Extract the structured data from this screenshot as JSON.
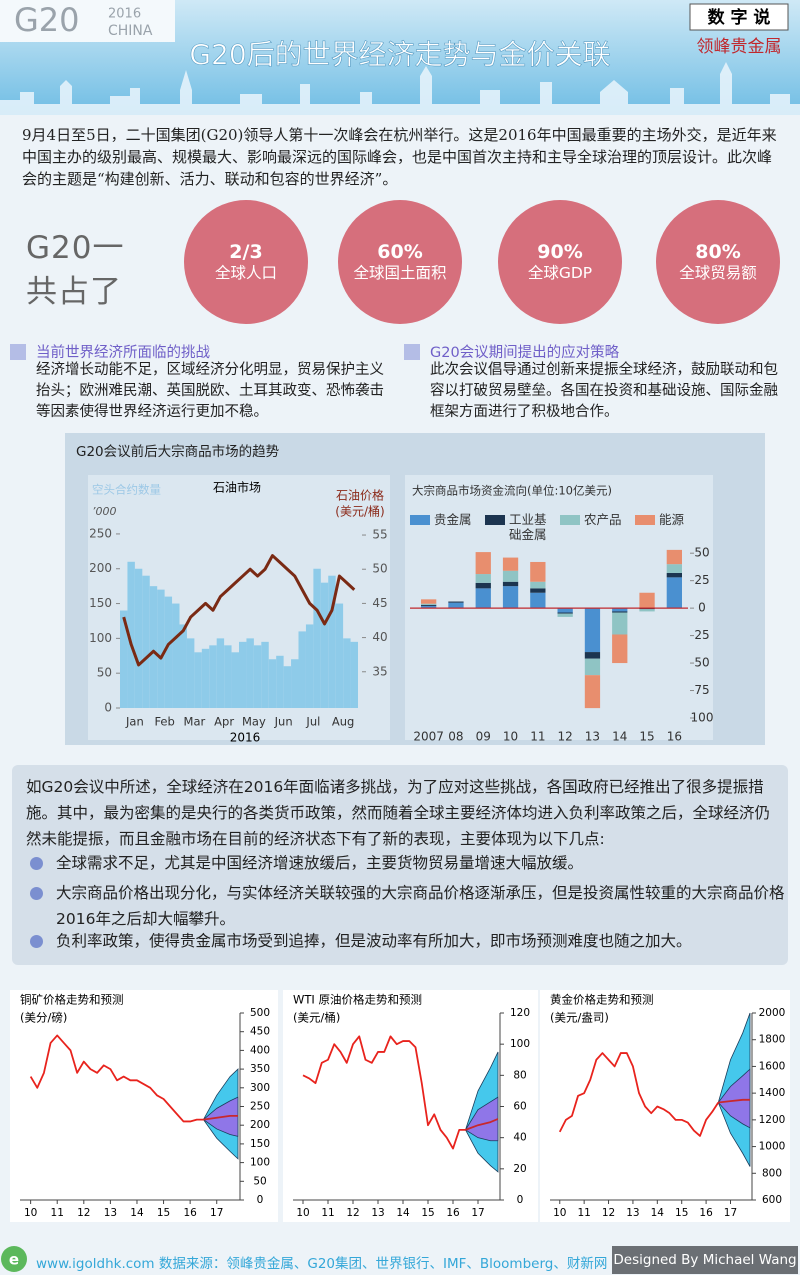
{
  "header": {
    "logo_text": "G20",
    "logo_year": "2016",
    "logo_country": "CHINA",
    "title": "G20后的世界经济走势与金价关联",
    "badge_title": "数 字 说",
    "badge_subtitle": "领峰贵金属"
  },
  "intro": "9月4日至5日，二十国集团(G20)领导人第十一次峰会在杭州举行。这是2016年中国最重要的主场外交，是近年来中国主办的级别最高、规模最大、影响最深远的国际峰会，也是中国首次主持和主导全球治理的顶层设计。此次峰会的主题是“构建创新、活力、联动和包容的世界经济”。",
  "stats": {
    "label_lines": [
      "G20一",
      "共占了"
    ],
    "items": [
      {
        "value": "2/3",
        "label": "全球人口"
      },
      {
        "value": "60%",
        "label": "全球国土面积"
      },
      {
        "value": "90%",
        "label": "全球GDP"
      },
      {
        "value": "80%",
        "label": "全球贸易额"
      }
    ]
  },
  "sections": [
    {
      "title": "当前世界经济所面临的挑战",
      "body": "经济增长动能不足，区域经济分化明显，贸易保护主义抬头；欧洲难民潮、英国脱欧、土耳其政变、恐怖袭击等因素使得世界经济运行更加不稳。"
    },
    {
      "title": "G20会议期间提出的应对策略",
      "body": "此次会议倡导通过创新来提振全球经济，鼓励联动和包容以打破贸易壁垒。各国在投资和基础设施、国际金融框架方面进行了积极地合作。"
    }
  ],
  "chart_panel_title": "G20会议前后大宗商品市场的趋势",
  "chart_data": [
    {
      "type": "bar_line",
      "title": "石油市场",
      "y_label": "空头合约数量",
      "y_unit": "’000",
      "y2_label": "石油价格",
      "y2_unit": "(美元/桶)",
      "x_label": "2016",
      "categories": [
        null,
        "Jan",
        null,
        null,
        null,
        "Feb",
        null,
        null,
        null,
        "Mar",
        null,
        null,
        null,
        "Apr",
        null,
        null,
        null,
        "May",
        null,
        null,
        null,
        "Jun",
        null,
        null,
        null,
        "Jul",
        null,
        null,
        null,
        "Aug",
        null,
        null
      ],
      "series": [
        {
          "color": "#8ecbe9",
          "values": [
            140,
            210,
            200,
            190,
            175,
            170,
            160,
            150,
            120,
            100,
            80,
            85,
            90,
            100,
            90,
            80,
            95,
            100,
            90,
            95,
            70,
            75,
            60,
            70,
            110,
            120,
            200,
            180,
            190,
            150,
            100,
            95
          ]
        },
        {
          "axis": "y2",
          "color": "#7a2a14",
          "values": [
            43,
            39,
            36,
            37,
            38,
            37,
            39,
            40,
            41,
            43,
            44,
            45,
            44,
            46,
            47,
            48,
            49,
            50,
            49,
            50,
            52,
            51,
            50,
            49,
            47,
            45,
            44,
            42,
            44,
            49,
            48,
            47
          ]
        }
      ],
      "ylim": [
        0,
        270
      ],
      "yticks": [
        0,
        50,
        100,
        150,
        200,
        250
      ],
      "y2lim": [
        29.7,
        57.2
      ],
      "y2ticks": [
        35,
        40,
        45,
        50,
        55
      ]
    },
    {
      "type": "stacked_bar",
      "title": "大宗商品市场资金流向(单位:10亿美元)",
      "categories": [
        "2007",
        "08",
        "09",
        "10",
        "11",
        "12",
        "13",
        "14",
        "15",
        "16"
      ],
      "series": [
        {
          "name": "贵金属",
          "color": "#4a90d0",
          "values": [
            2,
            5,
            18,
            20,
            14,
            -4,
            -40,
            -3,
            0,
            28
          ]
        },
        {
          "name": "工业基础金属",
          "color": "#1c3550",
          "values": [
            1,
            1,
            5,
            4,
            4,
            -1,
            -6,
            -1,
            -1,
            4
          ]
        },
        {
          "name": "农产品",
          "color": "#8fc4c4",
          "values": [
            1,
            0,
            8,
            10,
            6,
            -3,
            -15,
            -20,
            -2,
            8
          ]
        },
        {
          "name": "能源",
          "color": "#e88e6e",
          "values": [
            4,
            0,
            20,
            12,
            18,
            0,
            -30,
            -26,
            14,
            13
          ]
        }
      ],
      "ylim": [
        -100,
        62
      ],
      "yticks": [
        {
          "value": -100,
          "label": "100"
        },
        {
          "value": -75,
          "label": "75"
        },
        {
          "value": -50,
          "label": "50"
        },
        {
          "value": -25,
          "label": "25"
        },
        0,
        25,
        50
      ]
    },
    {
      "type": "forecast_line",
      "title": "铜矿价格走势和预测",
      "unit": "(美分/磅)",
      "color": "#e8231d",
      "x": [
        10,
        10.25,
        10.5,
        10.75,
        11,
        11.25,
        11.5,
        11.75,
        12,
        12.25,
        12.5,
        12.75,
        13,
        13.25,
        13.5,
        13.75,
        14,
        14.25,
        14.5,
        14.75,
        15,
        15.25,
        15.5,
        15.75,
        16,
        16.25,
        16.5
      ],
      "values": [
        330,
        300,
        340,
        420,
        440,
        420,
        400,
        340,
        370,
        350,
        340,
        360,
        350,
        320,
        330,
        320,
        320,
        310,
        300,
        280,
        270,
        250,
        230,
        210,
        210,
        215,
        215
      ],
      "forecast": {
        "x": [
          16.5,
          17,
          17.5,
          17.8
        ],
        "median": [
          215,
          220,
          225,
          225
        ],
        "outer_upper": [
          215,
          280,
          330,
          350
        ],
        "outer_lower": [
          215,
          165,
          130,
          110
        ],
        "inner_upper": [
          215,
          245,
          265,
          275
        ],
        "inner_lower": [
          215,
          190,
          175,
          170
        ],
        "outer_color": "#45c8ec",
        "inner_color": "#8f76e8",
        "median_color": "#c8282d"
      },
      "xlim": [
        9.6,
        17.8
      ],
      "xticks": [
        10,
        11,
        12,
        13,
        14,
        15,
        16,
        17
      ],
      "ylim": [
        0,
        500
      ],
      "yticks": [
        0,
        50,
        100,
        150,
        200,
        250,
        300,
        350,
        400,
        450,
        500
      ]
    },
    {
      "type": "forecast_line",
      "title": "WTI 原油价格走势和预测",
      "unit": "(美元/桶)",
      "color": "#e8231d",
      "x": [
        10,
        10.25,
        10.5,
        10.75,
        11,
        11.25,
        11.5,
        11.75,
        12,
        12.25,
        12.5,
        12.75,
        13,
        13.25,
        13.5,
        13.75,
        14,
        14.25,
        14.5,
        14.75,
        15,
        15.25,
        15.5,
        15.75,
        16,
        16.25,
        16.5
      ],
      "values": [
        80,
        78,
        75,
        88,
        90,
        100,
        95,
        88,
        100,
        105,
        90,
        88,
        95,
        95,
        105,
        100,
        102,
        102,
        98,
        75,
        48,
        55,
        45,
        40,
        33,
        45,
        45
      ],
      "forecast": {
        "x": [
          16.5,
          17,
          17.5,
          17.8
        ],
        "median": [
          45,
          48,
          50,
          52
        ],
        "outer_upper": [
          45,
          70,
          85,
          95
        ],
        "outer_lower": [
          45,
          30,
          22,
          18
        ],
        "inner_upper": [
          45,
          58,
          63,
          66
        ],
        "inner_lower": [
          45,
          40,
          38,
          38
        ],
        "outer_color": "#45c8ec",
        "inner_color": "#8f76e8",
        "median_color": "#c8282d"
      },
      "xlim": [
        9.6,
        17.8
      ],
      "xticks": [
        10,
        11,
        12,
        13,
        14,
        15,
        16,
        17
      ],
      "ylim": [
        0,
        120
      ],
      "yticks": [
        0,
        20,
        40,
        60,
        80,
        100,
        120
      ]
    },
    {
      "type": "forecast_line",
      "title": "黄金价格走势和预测",
      "unit": "(美元/盎司)",
      "color": "#e8231d",
      "x": [
        10,
        10.25,
        10.5,
        10.75,
        11,
        11.25,
        11.5,
        11.75,
        12,
        12.25,
        12.5,
        12.75,
        13,
        13.25,
        13.5,
        13.75,
        14,
        14.25,
        14.5,
        14.75,
        15,
        15.25,
        15.5,
        15.75,
        16,
        16.25,
        16.5
      ],
      "values": [
        1110,
        1200,
        1230,
        1380,
        1400,
        1500,
        1650,
        1700,
        1650,
        1600,
        1700,
        1700,
        1600,
        1400,
        1300,
        1250,
        1300,
        1280,
        1250,
        1200,
        1200,
        1180,
        1120,
        1080,
        1200,
        1260,
        1330
      ],
      "forecast": {
        "x": [
          16.5,
          17,
          17.5,
          17.8
        ],
        "median": [
          1330,
          1340,
          1350,
          1350
        ],
        "outer_upper": [
          1330,
          1650,
          1850,
          2000
        ],
        "outer_lower": [
          1330,
          1100,
          950,
          850
        ],
        "inner_upper": [
          1330,
          1450,
          1530,
          1580
        ],
        "inner_lower": [
          1330,
          1230,
          1170,
          1140
        ],
        "outer_color": "#45c8ec",
        "inner_color": "#8f76e8",
        "median_color": "#c8282d"
      },
      "xlim": [
        9.6,
        17.8
      ],
      "xticks": [
        10,
        11,
        12,
        13,
        14,
        15,
        16,
        17
      ],
      "ylim": [
        600,
        2000
      ],
      "yticks": [
        600,
        800,
        1000,
        1200,
        1400,
        1600,
        1800,
        2000
      ]
    }
  ],
  "summary": {
    "text": "如G20会议中所述，全球经济在2016年面临诸多挑战，为了应对这些挑战，各国政府已经推出了很多提振措施。其中，最为密集的是央行的各类货币政策，然而随着全球主要经济体均进入负利率政策之后，全球经济仍然未能提振，而且金融市场在目前的经济状态下有了新的表现，主要体现为以下几点:",
    "bullets": [
      "全球需求不足，尤其是中国经济增速放缓后，主要货物贸易量增速大幅放缓。",
      "大宗商品价格出现分化，与实体经济关联较强的大宗商品价格逐渐承压，但是投资属性较重的大宗商品价格2016年之后却大幅攀升。",
      "负利率政策，使得贵金属市场受到追捧，但是波动率有所加大，即市场预测难度也随之加大。"
    ]
  },
  "footer": {
    "source": "www.igoldhk.com 数据来源：领峰贵金属、G20集团、世界银行、IMF、Bloomberg、财新网",
    "designer": "Designed By Michael Wang"
  }
}
